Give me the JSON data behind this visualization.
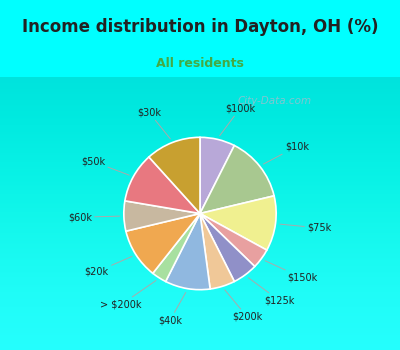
{
  "title": "Income distribution in Dayton, OH (%)",
  "subtitle": "All residents",
  "title_color": "#222222",
  "subtitle_color": "#44aa44",
  "background_color": "#00FFFF",
  "chart_bg_top": "#e8f5ee",
  "chart_bg_bottom": "#d8eee0",
  "watermark": "City-Data.com",
  "labels": [
    "$100k",
    "$10k",
    "$75k",
    "$150k",
    "$125k",
    "$200k",
    "$40k",
    "> $200k",
    "$20k",
    "$60k",
    "$50k",
    "$30k"
  ],
  "values": [
    7,
    13,
    11,
    4,
    5,
    5,
    9,
    3,
    10,
    6,
    10,
    11
  ],
  "colors": [
    "#b8a8d8",
    "#a8c890",
    "#f0f090",
    "#e8a0a0",
    "#9090c8",
    "#f0c898",
    "#90b8e0",
    "#a8e0a0",
    "#f0a850",
    "#c8b8a0",
    "#e87880",
    "#c8a030"
  ],
  "label_fontsize": 7,
  "title_fontsize": 12,
  "subtitle_fontsize": 9,
  "startangle": 90
}
